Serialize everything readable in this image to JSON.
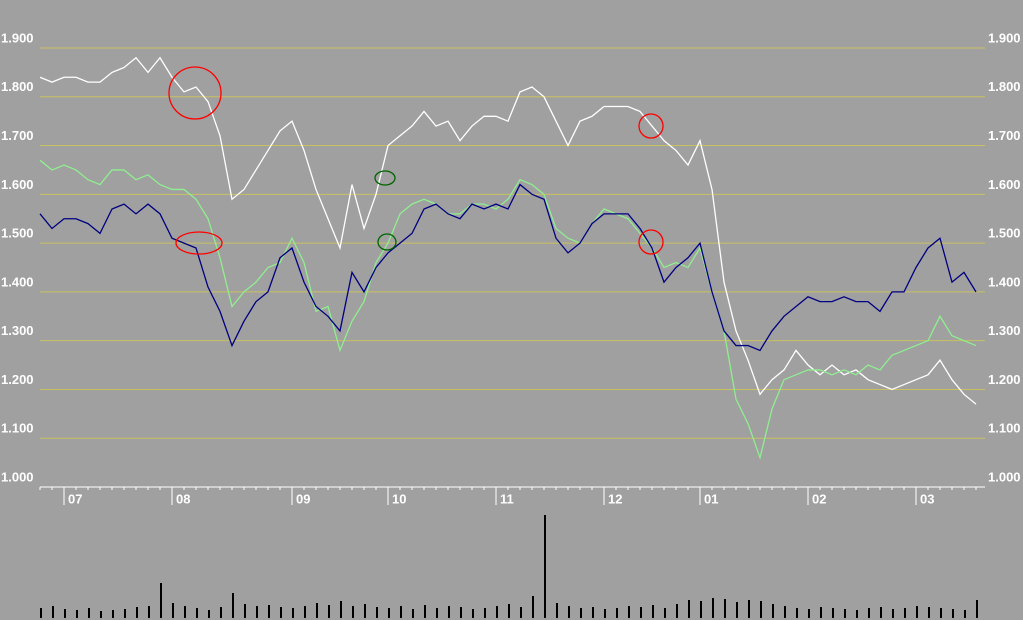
{
  "chart_data": {
    "type": "line",
    "categories": [
      null,
      null,
      "07",
      null,
      null,
      null,
      null,
      null,
      null,
      null,
      null,
      "08",
      null,
      null,
      null,
      null,
      null,
      null,
      null,
      null,
      null,
      "09",
      null,
      null,
      null,
      null,
      null,
      null,
      null,
      "10",
      null,
      null,
      null,
      null,
      null,
      null,
      null,
      null,
      "11",
      null,
      null,
      null,
      null,
      null,
      null,
      null,
      null,
      "12",
      null,
      null,
      null,
      null,
      null,
      null,
      null,
      "01",
      null,
      null,
      null,
      null,
      null,
      null,
      null,
      null,
      "02",
      null,
      null,
      null,
      null,
      null,
      null,
      null,
      null,
      "03",
      null,
      null,
      null,
      null,
      null
    ],
    "series": [
      {
        "color": "#ffffff",
        "values": [
          1.84,
          1.83,
          1.84,
          1.84,
          1.83,
          1.83,
          1.85,
          1.86,
          1.88,
          1.85,
          1.88,
          1.84,
          1.81,
          1.82,
          1.79,
          1.72,
          1.59,
          1.61,
          1.65,
          1.69,
          1.73,
          1.75,
          1.69,
          1.61,
          1.55,
          1.49,
          1.62,
          1.53,
          1.6,
          1.7,
          1.72,
          1.74,
          1.77,
          1.74,
          1.75,
          1.71,
          1.74,
          1.76,
          1.76,
          1.75,
          1.81,
          1.82,
          1.8,
          1.75,
          1.7,
          1.75,
          1.76,
          1.78,
          1.78,
          1.78,
          1.77,
          1.74,
          1.71,
          1.69,
          1.66,
          1.71,
          1.61,
          1.42,
          1.32,
          1.26,
          1.19,
          1.22,
          1.24,
          1.28,
          1.25,
          1.23,
          1.25,
          1.23,
          1.24,
          1.22,
          1.21,
          1.2,
          1.21,
          1.22,
          1.23,
          1.26,
          1.22,
          1.19,
          1.17
        ]
      },
      {
        "color": "#90ee90",
        "values": [
          1.67,
          1.65,
          1.66,
          1.65,
          1.63,
          1.62,
          1.65,
          1.65,
          1.63,
          1.64,
          1.62,
          1.61,
          1.61,
          1.59,
          1.55,
          1.47,
          1.37,
          1.4,
          1.42,
          1.45,
          1.46,
          1.51,
          1.46,
          1.36,
          1.37,
          1.28,
          1.34,
          1.38,
          1.46,
          1.5,
          1.56,
          1.58,
          1.59,
          1.58,
          1.56,
          1.56,
          1.58,
          1.58,
          1.57,
          1.59,
          1.63,
          1.62,
          1.6,
          1.53,
          1.51,
          1.5,
          1.54,
          1.57,
          1.56,
          1.55,
          1.52,
          1.49,
          1.45,
          1.46,
          1.45,
          1.49,
          1.4,
          1.32,
          1.18,
          1.13,
          1.06,
          1.16,
          1.22,
          1.23,
          1.24,
          1.24,
          1.23,
          1.24,
          1.23,
          1.25,
          1.24,
          1.27,
          1.28,
          1.29,
          1.3,
          1.35,
          1.31,
          1.3,
          1.29
        ]
      },
      {
        "color": "#000080",
        "values": [
          1.56,
          1.53,
          1.55,
          1.55,
          1.54,
          1.52,
          1.57,
          1.58,
          1.56,
          1.58,
          1.56,
          1.51,
          1.5,
          1.49,
          1.41,
          1.36,
          1.29,
          1.34,
          1.38,
          1.4,
          1.47,
          1.49,
          1.42,
          1.37,
          1.35,
          1.32,
          1.44,
          1.4,
          1.45,
          1.48,
          1.5,
          1.52,
          1.57,
          1.58,
          1.56,
          1.55,
          1.58,
          1.57,
          1.58,
          1.57,
          1.62,
          1.6,
          1.59,
          1.51,
          1.48,
          1.5,
          1.54,
          1.56,
          1.56,
          1.56,
          1.53,
          1.49,
          1.42,
          1.45,
          1.47,
          1.5,
          1.4,
          1.32,
          1.29,
          1.29,
          1.28,
          1.32,
          1.35,
          1.37,
          1.39,
          1.38,
          1.38,
          1.39,
          1.38,
          1.38,
          1.36,
          1.4,
          1.4,
          1.45,
          1.49,
          1.51,
          1.42,
          1.44,
          1.4
        ]
      }
    ],
    "volume": {
      "color": "#000000",
      "values": [
        10,
        12,
        9,
        8,
        10,
        7,
        8,
        9,
        11,
        12,
        35,
        15,
        12,
        10,
        8,
        11,
        25,
        14,
        12,
        13,
        11,
        10,
        12,
        15,
        13,
        17,
        12,
        14,
        11,
        10,
        12,
        9,
        13,
        10,
        12,
        11,
        9,
        10,
        12,
        14,
        11,
        22,
        103,
        15,
        12,
        10,
        11,
        9,
        10,
        12,
        11,
        13,
        10,
        14,
        18,
        17,
        20,
        19,
        16,
        18,
        17,
        14,
        12,
        10,
        9,
        11,
        10,
        9,
        8,
        10,
        11,
        9,
        10,
        12,
        11,
        10,
        9,
        8,
        18
      ]
    },
    "ylim": [
      1.0,
      1.9
    ],
    "yticks": [
      {
        "value": 1.0,
        "label": "1.000"
      },
      {
        "value": 1.1,
        "label": "1.100"
      },
      {
        "value": 1.2,
        "label": "1.200"
      },
      {
        "value": 1.3,
        "label": "1.300"
      },
      {
        "value": 1.4,
        "label": "1.400"
      },
      {
        "value": 1.5,
        "label": "1.500"
      },
      {
        "value": 1.6,
        "label": "1.600"
      },
      {
        "value": 1.7,
        "label": "1.700"
      },
      {
        "value": 1.8,
        "label": "1.800"
      },
      {
        "value": 1.9,
        "label": "1.900"
      }
    ],
    "grid": true,
    "grid_color": "#c8c060"
  }
}
